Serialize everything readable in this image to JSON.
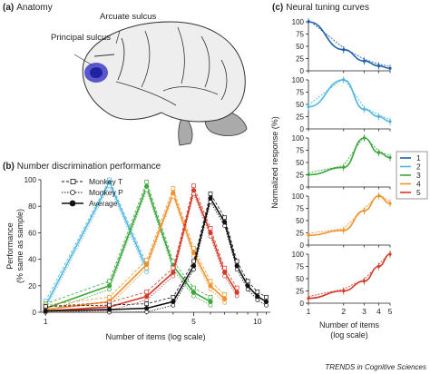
{
  "panels": {
    "a": {
      "label": "(a)",
      "title": "Anatomy",
      "labels": [
        "Principal sulcus",
        "Arcuate sulcus"
      ]
    },
    "b": {
      "label": "(b)",
      "title": "Number discrimination performance"
    },
    "c": {
      "label": "(c)",
      "title": "Neural tuning curves"
    }
  },
  "footer": "TRENDS in Cognitive Sciences",
  "colors": {
    "1": "#1f5fa8",
    "2": "#4fb6e0",
    "3": "#3aa83a",
    "4": "#f0912a",
    "5": "#d43a2a",
    "avg": "#111111",
    "brain": "#eeeeee",
    "cerebellum": "#aaaaaa",
    "lesion": "#3d3dc8"
  },
  "chart_data": [
    {
      "type": "line",
      "panel": "b",
      "xlabel": "Number of items (log scale)",
      "ylabel": "Performance (% same as sample)",
      "xscale": "log",
      "xlim": [
        0.95,
        11.5
      ],
      "ylim": [
        0,
        100
      ],
      "xticks": [
        1,
        5,
        10
      ],
      "yticks": [
        0,
        20,
        40,
        60,
        80,
        100
      ],
      "legend": {
        "placement": "top-left",
        "entries": [
          "Monkey T",
          "Monkey P",
          "Average"
        ]
      },
      "x": [
        1,
        2,
        3,
        4,
        5,
        6,
        7,
        8,
        9,
        10,
        11
      ],
      "series": [
        {
          "sample": 2,
          "color_key": "2",
          "values": [
            5,
            98,
            33,
            null,
            null,
            null,
            null,
            null,
            null,
            null,
            null
          ]
        },
        {
          "sample": 3,
          "color_key": "3",
          "values": [
            3,
            20,
            95,
            35,
            15,
            8,
            null,
            null,
            null,
            null,
            null
          ]
        },
        {
          "sample": 4,
          "color_key": "4",
          "values": [
            2,
            8,
            36,
            90,
            45,
            20,
            10,
            null,
            null,
            null,
            null
          ]
        },
        {
          "sample": 5,
          "color_key": "5",
          "values": [
            1,
            4,
            12,
            30,
            92,
            60,
            30,
            15,
            null,
            null,
            null
          ]
        },
        {
          "sample": 6,
          "color_key": "avg",
          "values": [
            1,
            2,
            3,
            8,
            35,
            86,
            68,
            35,
            20,
            12,
            8
          ]
        }
      ]
    },
    {
      "type": "line",
      "panel": "c",
      "xlabel": "Number of items (log scale)",
      "ylabel": "Normalized response (%)",
      "xscale": "log",
      "xlim": [
        1,
        5
      ],
      "ylim": [
        0,
        100
      ],
      "xticks": [
        1,
        2,
        3,
        4,
        5
      ],
      "yticks": [
        0,
        25,
        50,
        75,
        100
      ],
      "legend": {
        "placement": "right",
        "entries": [
          "1",
          "2",
          "3",
          "4",
          "5"
        ]
      },
      "x": [
        1,
        2,
        3,
        4,
        5
      ],
      "series": [
        {
          "name": "1",
          "values": [
            100,
            43,
            20,
            10,
            5
          ]
        },
        {
          "name": "2",
          "values": [
            45,
            100,
            40,
            25,
            15
          ]
        },
        {
          "name": "3",
          "values": [
            25,
            40,
            100,
            70,
            60
          ]
        },
        {
          "name": "4",
          "values": [
            20,
            30,
            70,
            100,
            85
          ]
        },
        {
          "name": "5",
          "values": [
            10,
            25,
            45,
            75,
            100
          ]
        }
      ]
    }
  ]
}
